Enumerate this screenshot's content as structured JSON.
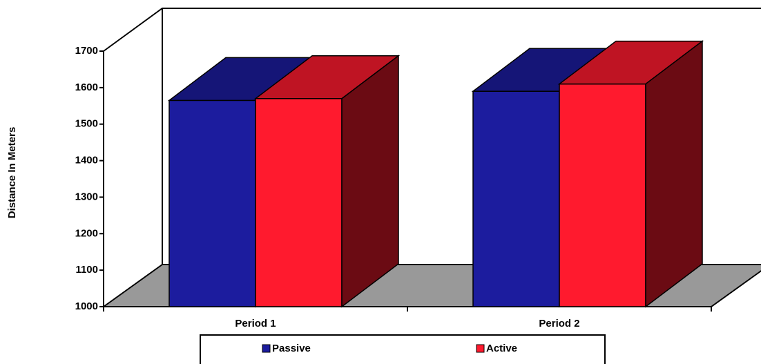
{
  "chart_data": {
    "type": "bar3d",
    "y_label": "Distance In Meters",
    "categories": [
      "Period 1",
      "Period 2"
    ],
    "series": [
      {
        "name": "Passive",
        "color": "#1c1c9e",
        "values": [
          1565,
          1590
        ]
      },
      {
        "name": "Active",
        "color": "#ff1a2e",
        "values": [
          1570,
          1610
        ]
      }
    ],
    "ylim": [
      1000,
      1700
    ],
    "yticks": [
      1000,
      1100,
      1200,
      1300,
      1400,
      1500,
      1600,
      1700
    ]
  }
}
